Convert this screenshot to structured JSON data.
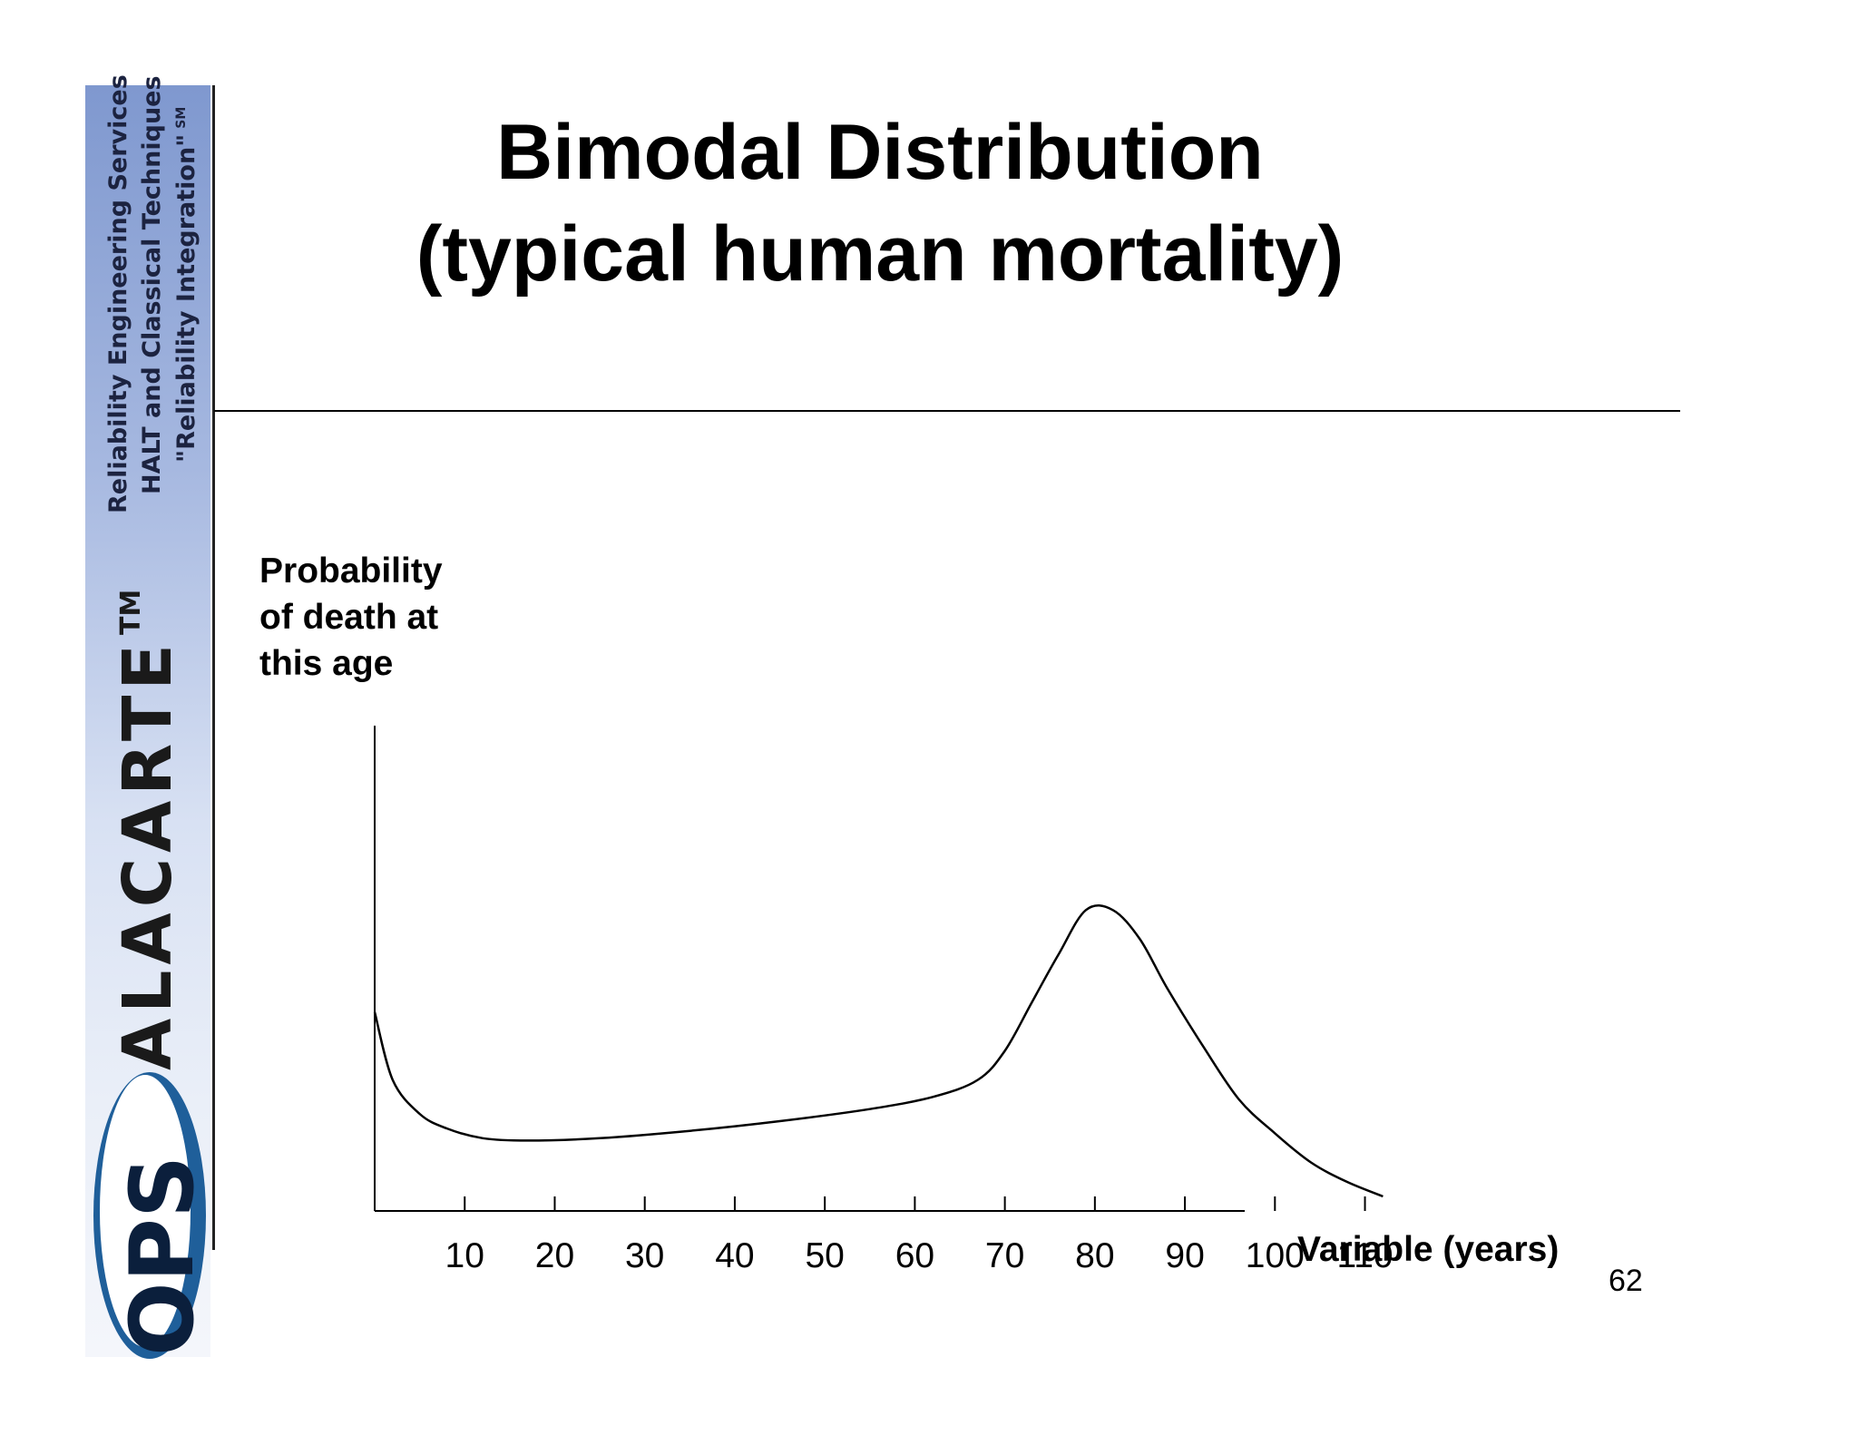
{
  "sidebar": {
    "taglines": [
      "Reliability Engineering Services",
      "HALT and Classical Techniques",
      "\"Reliability Integration\""
    ],
    "service_mark": "SM",
    "brand": "ALACARTE",
    "trademark": "TM",
    "logo_text": "OPS",
    "colors": {
      "logo_blue": "#1f5f9a",
      "logo_dark": "#0b1f3c"
    }
  },
  "slide": {
    "title_lines": [
      "Bimodal Distribution",
      "(typical human mortality)"
    ],
    "page_number": "62"
  },
  "chart_data": {
    "type": "line",
    "ylabel_lines": [
      "Probability",
      "of death at",
      "this age"
    ],
    "xlabel": "Variable (years)",
    "x_ticks": [
      10,
      20,
      30,
      40,
      50,
      60,
      70,
      80,
      90,
      100,
      110
    ],
    "xlim": [
      0,
      130
    ],
    "ylim": [
      0,
      1
    ],
    "y_tick_labels": "none",
    "grid": false,
    "series": [
      {
        "x": [
          0,
          2,
          5,
          8,
          12,
          17,
          25,
          35,
          45,
          55,
          62,
          67,
          70,
          73,
          76,
          79,
          82,
          85,
          88,
          92,
          96,
          100,
          104,
          108,
          112
        ],
        "y": [
          0.41,
          0.27,
          0.2,
          0.17,
          0.15,
          0.145,
          0.15,
          0.165,
          0.185,
          0.21,
          0.235,
          0.27,
          0.33,
          0.43,
          0.53,
          0.62,
          0.62,
          0.56,
          0.46,
          0.34,
          0.23,
          0.16,
          0.1,
          0.06,
          0.03
        ]
      }
    ]
  }
}
